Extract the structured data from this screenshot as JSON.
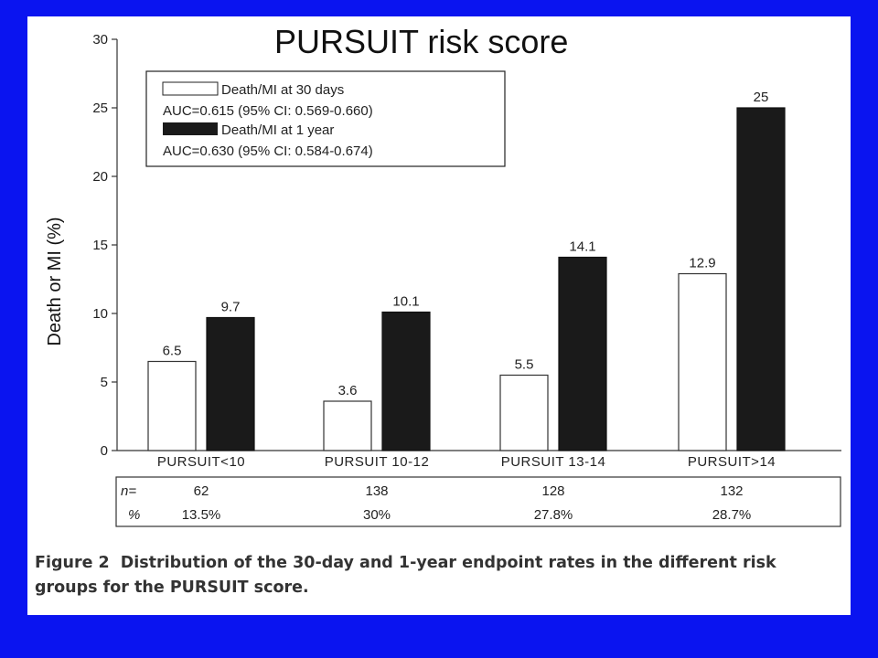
{
  "chart_data": {
    "type": "bar",
    "title": "PURSUIT risk score",
    "ylabel": "Death or MI (%)",
    "ylim": [
      0,
      30
    ],
    "yticks": [
      "0",
      "5",
      "10",
      "15",
      "20",
      "25",
      "30"
    ],
    "categories": [
      "PURSUIT<10",
      "PURSUIT 10-12",
      "PURSUIT 13-14",
      "PURSUIT>14"
    ],
    "series": [
      {
        "name": "Death/MI at 30 days",
        "values": [
          6.5,
          3.6,
          5.5,
          12.9
        ],
        "labels": [
          "6.5",
          "3.6",
          "5.5",
          "12.9"
        ],
        "color": "#ffffff"
      },
      {
        "name": "Death/MI at 1 year",
        "values": [
          9.7,
          10.1,
          14.1,
          25
        ],
        "labels": [
          "9.7",
          "10.1",
          "14.1",
          "25"
        ],
        "color": "#1a1a1a"
      }
    ],
    "legend": {
      "position": "top-left",
      "entries": [
        {
          "label": "Death/MI at 30 days",
          "auc": "AUC=0.615 (95% CI: 0.569-0.660)"
        },
        {
          "label": "Death/MI at 1 year",
          "auc": "AUC=0.630 (95% CI: 0.584-0.674)"
        }
      ]
    },
    "table": {
      "row_labels": [
        "n=",
        "%"
      ],
      "n": [
        "62",
        "138",
        "128",
        "132"
      ],
      "pct": [
        "13.5%",
        "30%",
        "27.8%",
        "28.7%"
      ]
    }
  },
  "caption": {
    "figure_label": "Figure 2",
    "text": "Distribution of the 30-day and 1-year endpoint rates in the different risk groups for the PURSUIT score."
  },
  "colors": {
    "background": "#0a14f0",
    "card": "#ffffff",
    "bar_dark": "#1a1a1a"
  }
}
